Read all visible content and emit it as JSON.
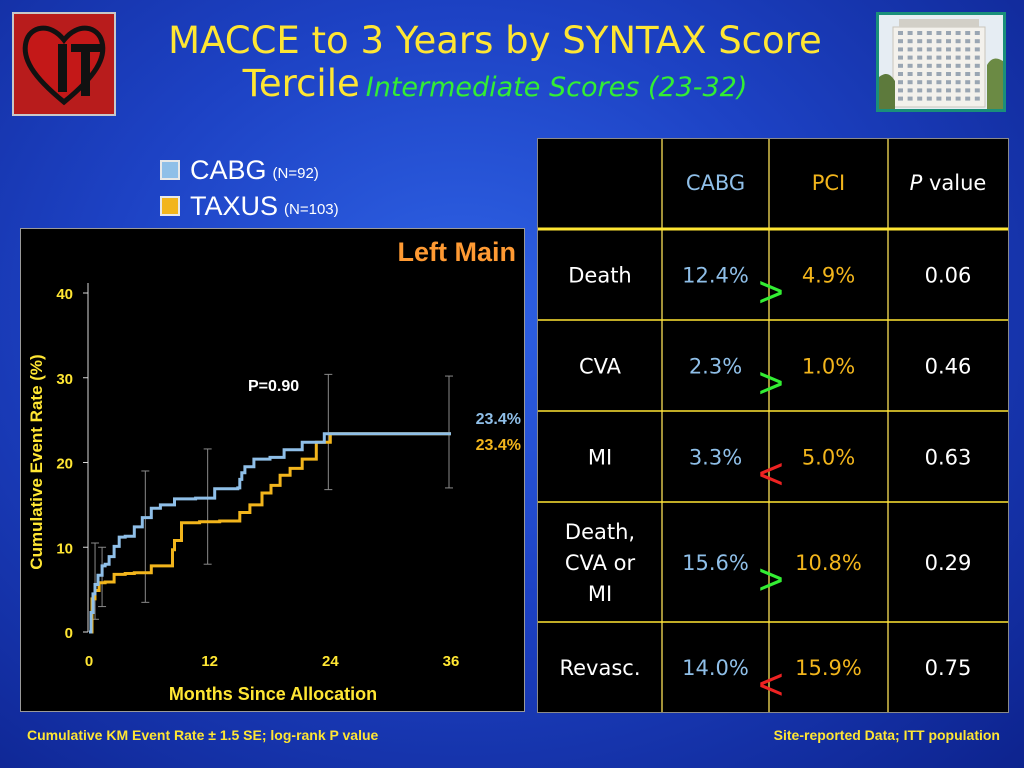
{
  "title": {
    "main_line1": "MACCE to 3 Years by SYNTAX Score",
    "main_line2": "Tercile",
    "subtitle": "Intermediate Scores (23-32)"
  },
  "legend": [
    {
      "name": "CABG",
      "n": "(N=92)",
      "color": "#8fbfe8"
    },
    {
      "name": "TAXUS",
      "n": "(N=103)",
      "color": "#f2b51c"
    }
  ],
  "chart_data": {
    "type": "line",
    "subtype": "kaplan-meier step",
    "title": "Left Main",
    "xlabel": "Months Since Allocation",
    "ylabel": "Cumulative Event Rate (%)",
    "xlim": [
      0,
      36
    ],
    "ylim": [
      0,
      40
    ],
    "x_ticks": [
      0,
      12,
      24,
      36
    ],
    "y_ticks": [
      0,
      10,
      20,
      30,
      40
    ],
    "annotation": "P=0.90",
    "series": [
      {
        "name": "CABG",
        "color": "#8fbfe8",
        "end_label": "23.4%",
        "x": [
          0,
          0.2,
          0.4,
          0.6,
          0.9,
          1.3,
          1.6,
          2.0,
          2.5,
          3.0,
          3.6,
          4.5,
          5.3,
          6.2,
          7.1,
          8.5,
          10.6,
          12.5,
          14.8,
          15.0,
          15.2,
          15.5,
          16.4,
          18.0,
          19.4,
          21.2,
          23.4,
          25.0,
          36.0
        ],
        "y": [
          0,
          2.3,
          4.5,
          5.6,
          6.7,
          7.8,
          8.0,
          8.9,
          10.1,
          11.2,
          11.3,
          12.4,
          13.5,
          14.6,
          15.0,
          15.7,
          15.8,
          16.9,
          17.0,
          18.0,
          18.8,
          19.5,
          20.4,
          20.6,
          21.5,
          22.4,
          23.4,
          23.4,
          23.4
        ]
      },
      {
        "name": "TAXUS",
        "color": "#f2b51c",
        "end_label": "23.4%",
        "x": [
          0,
          0.3,
          0.6,
          1.0,
          1.6,
          2.5,
          3.6,
          4.5,
          6.2,
          8.3,
          8.5,
          9.2,
          11.0,
          13.0,
          15.0,
          16.0,
          17.2,
          18.1,
          19.0,
          20.0,
          21.2,
          22.6,
          24.0,
          36.0
        ],
        "y": [
          0,
          3.9,
          4.9,
          5.8,
          5.9,
          6.8,
          6.9,
          7.0,
          7.8,
          9.7,
          10.8,
          12.9,
          13.0,
          13.1,
          14.1,
          15.0,
          16.4,
          17.3,
          18.5,
          19.3,
          20.4,
          22.4,
          23.4,
          23.4
        ]
      }
    ]
  },
  "table": {
    "headers": [
      "",
      "CABG",
      "PCI",
      "P value"
    ],
    "rows": [
      {
        "label": [
          "Death"
        ],
        "cabg": "12.4%",
        "pci": "4.9%",
        "p": "0.06",
        "sign": ">"
      },
      {
        "label": [
          "CVA"
        ],
        "cabg": "2.3%",
        "pci": "1.0%",
        "p": "0.46",
        "sign": ">"
      },
      {
        "label": [
          "MI"
        ],
        "cabg": "3.3%",
        "pci": "5.0%",
        "p": "0.63",
        "sign": "<"
      },
      {
        "label": [
          "Death,",
          "CVA or",
          "MI"
        ],
        "cabg": "15.6%",
        "pci": "10.8%",
        "p": "0.29",
        "sign": ">"
      },
      {
        "label": [
          "Revasc."
        ],
        "cabg": "14.0%",
        "pci": "15.9%",
        "p": "0.75",
        "sign": "<"
      }
    ]
  },
  "colors": {
    "title": "#ffe633",
    "subtitle": "#33ee33",
    "chart_title": "#ff9a33",
    "cabg": "#8fbfe8",
    "taxus": "#f2b51c",
    "sign_greater": "#33ee33",
    "sign_less": "#ee2222",
    "table_grid": "#ffe633"
  },
  "footer": {
    "left": "Cumulative KM Event Rate ± 1.5 SE; log-rank P value",
    "right": "Site-reported Data; ITT population"
  }
}
